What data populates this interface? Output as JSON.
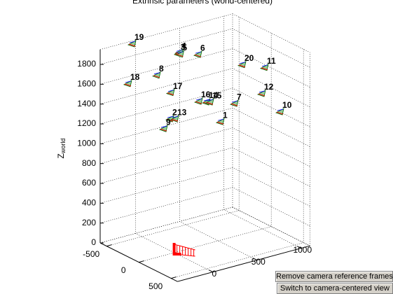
{
  "chart_data": {
    "type": "scatter3d",
    "title": "Extrinsic parameters (world-centered)",
    "zlabel": "Z",
    "zlabel_sub": "world",
    "xlim": [
      -400,
      1100
    ],
    "xticks": [
      0,
      500,
      1000
    ],
    "ylim": [
      -600,
      600
    ],
    "yticks": [
      -500,
      0,
      500
    ],
    "zlim": [
      0,
      1950
    ],
    "zticks": [
      0,
      200,
      400,
      600,
      800,
      1000,
      1200,
      1400,
      1600,
      1800
    ],
    "grid": true,
    "points": [
      {
        "label": "1",
        "x": 527,
        "y": 0,
        "z": 1199
      },
      {
        "label": "2",
        "x": -44,
        "y": 0,
        "z": 1365
      },
      {
        "label": "3",
        "x": 50,
        "y": 0,
        "z": 2000
      },
      {
        "label": "4",
        "x": 60,
        "y": 0,
        "z": 2010
      },
      {
        "label": "5",
        "x": 70,
        "y": 0,
        "z": 1990
      },
      {
        "label": "6",
        "x": 273,
        "y": 0,
        "z": 1938
      },
      {
        "label": "7",
        "x": 686,
        "y": 0,
        "z": 1345
      },
      {
        "label": "8",
        "x": -195,
        "y": 0,
        "z": 1841
      },
      {
        "label": "9",
        "x": -116,
        "y": 0,
        "z": 1283
      },
      {
        "label": "10",
        "x": 910,
        "y": 400,
        "z": 1337
      },
      {
        "label": "11",
        "x": 735,
        "y": 400,
        "z": 1826
      },
      {
        "label": "12",
        "x": 703,
        "y": 400,
        "z": 1571
      },
      {
        "label": "13",
        "x": 11,
        "y": 0,
        "z": 1352
      },
      {
        "label": "14",
        "x": 368,
        "y": 0,
        "z": 1436
      },
      {
        "label": "15",
        "x": 408,
        "y": 0,
        "z": 1426
      },
      {
        "label": "16",
        "x": 281,
        "y": 0,
        "z": 1464
      },
      {
        "label": "17",
        "x": -37,
        "y": 0,
        "z": 1628
      },
      {
        "label": "18",
        "x": -229,
        "y": -400,
        "z": 1634
      },
      {
        "label": "19",
        "x": -181,
        "y": -400,
        "z": 2024
      },
      {
        "label": "20",
        "x": 481,
        "y": 400,
        "z": 1915
      }
    ]
  },
  "buttons": [
    "Remove camera reference frames",
    "Switch to camera-centered view"
  ]
}
